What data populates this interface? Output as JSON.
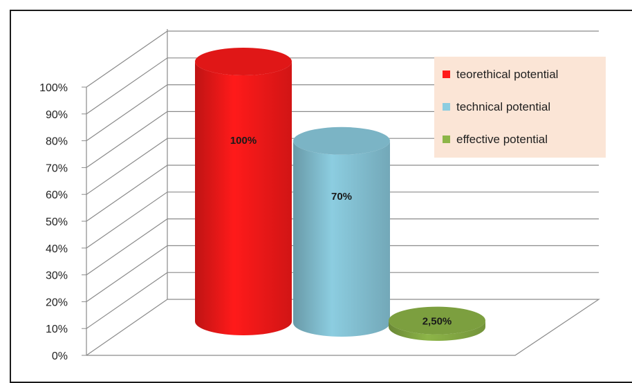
{
  "chart_data": {
    "type": "bar",
    "style": "3d-cylinder",
    "categories": [
      "teorethical potential",
      "technical potential",
      "effective potential"
    ],
    "values": [
      100,
      70,
      2.5
    ],
    "data_labels": [
      "100%",
      "70%",
      "2,50%"
    ],
    "colors": [
      "#ff1a1a",
      "#8ccde0",
      "#8db548"
    ],
    "ylim": [
      0,
      100
    ],
    "yticks": [
      "0%",
      "10%",
      "20%",
      "30%",
      "40%",
      "50%",
      "60%",
      "70%",
      "80%",
      "90%",
      "100%"
    ],
    "grid": true,
    "legend": {
      "position": "top-right",
      "background": "#fbe5d6",
      "items": [
        "teorethical potential",
        "technical potential",
        "effective potential"
      ]
    },
    "title": "",
    "xlabel": "",
    "ylabel": ""
  }
}
